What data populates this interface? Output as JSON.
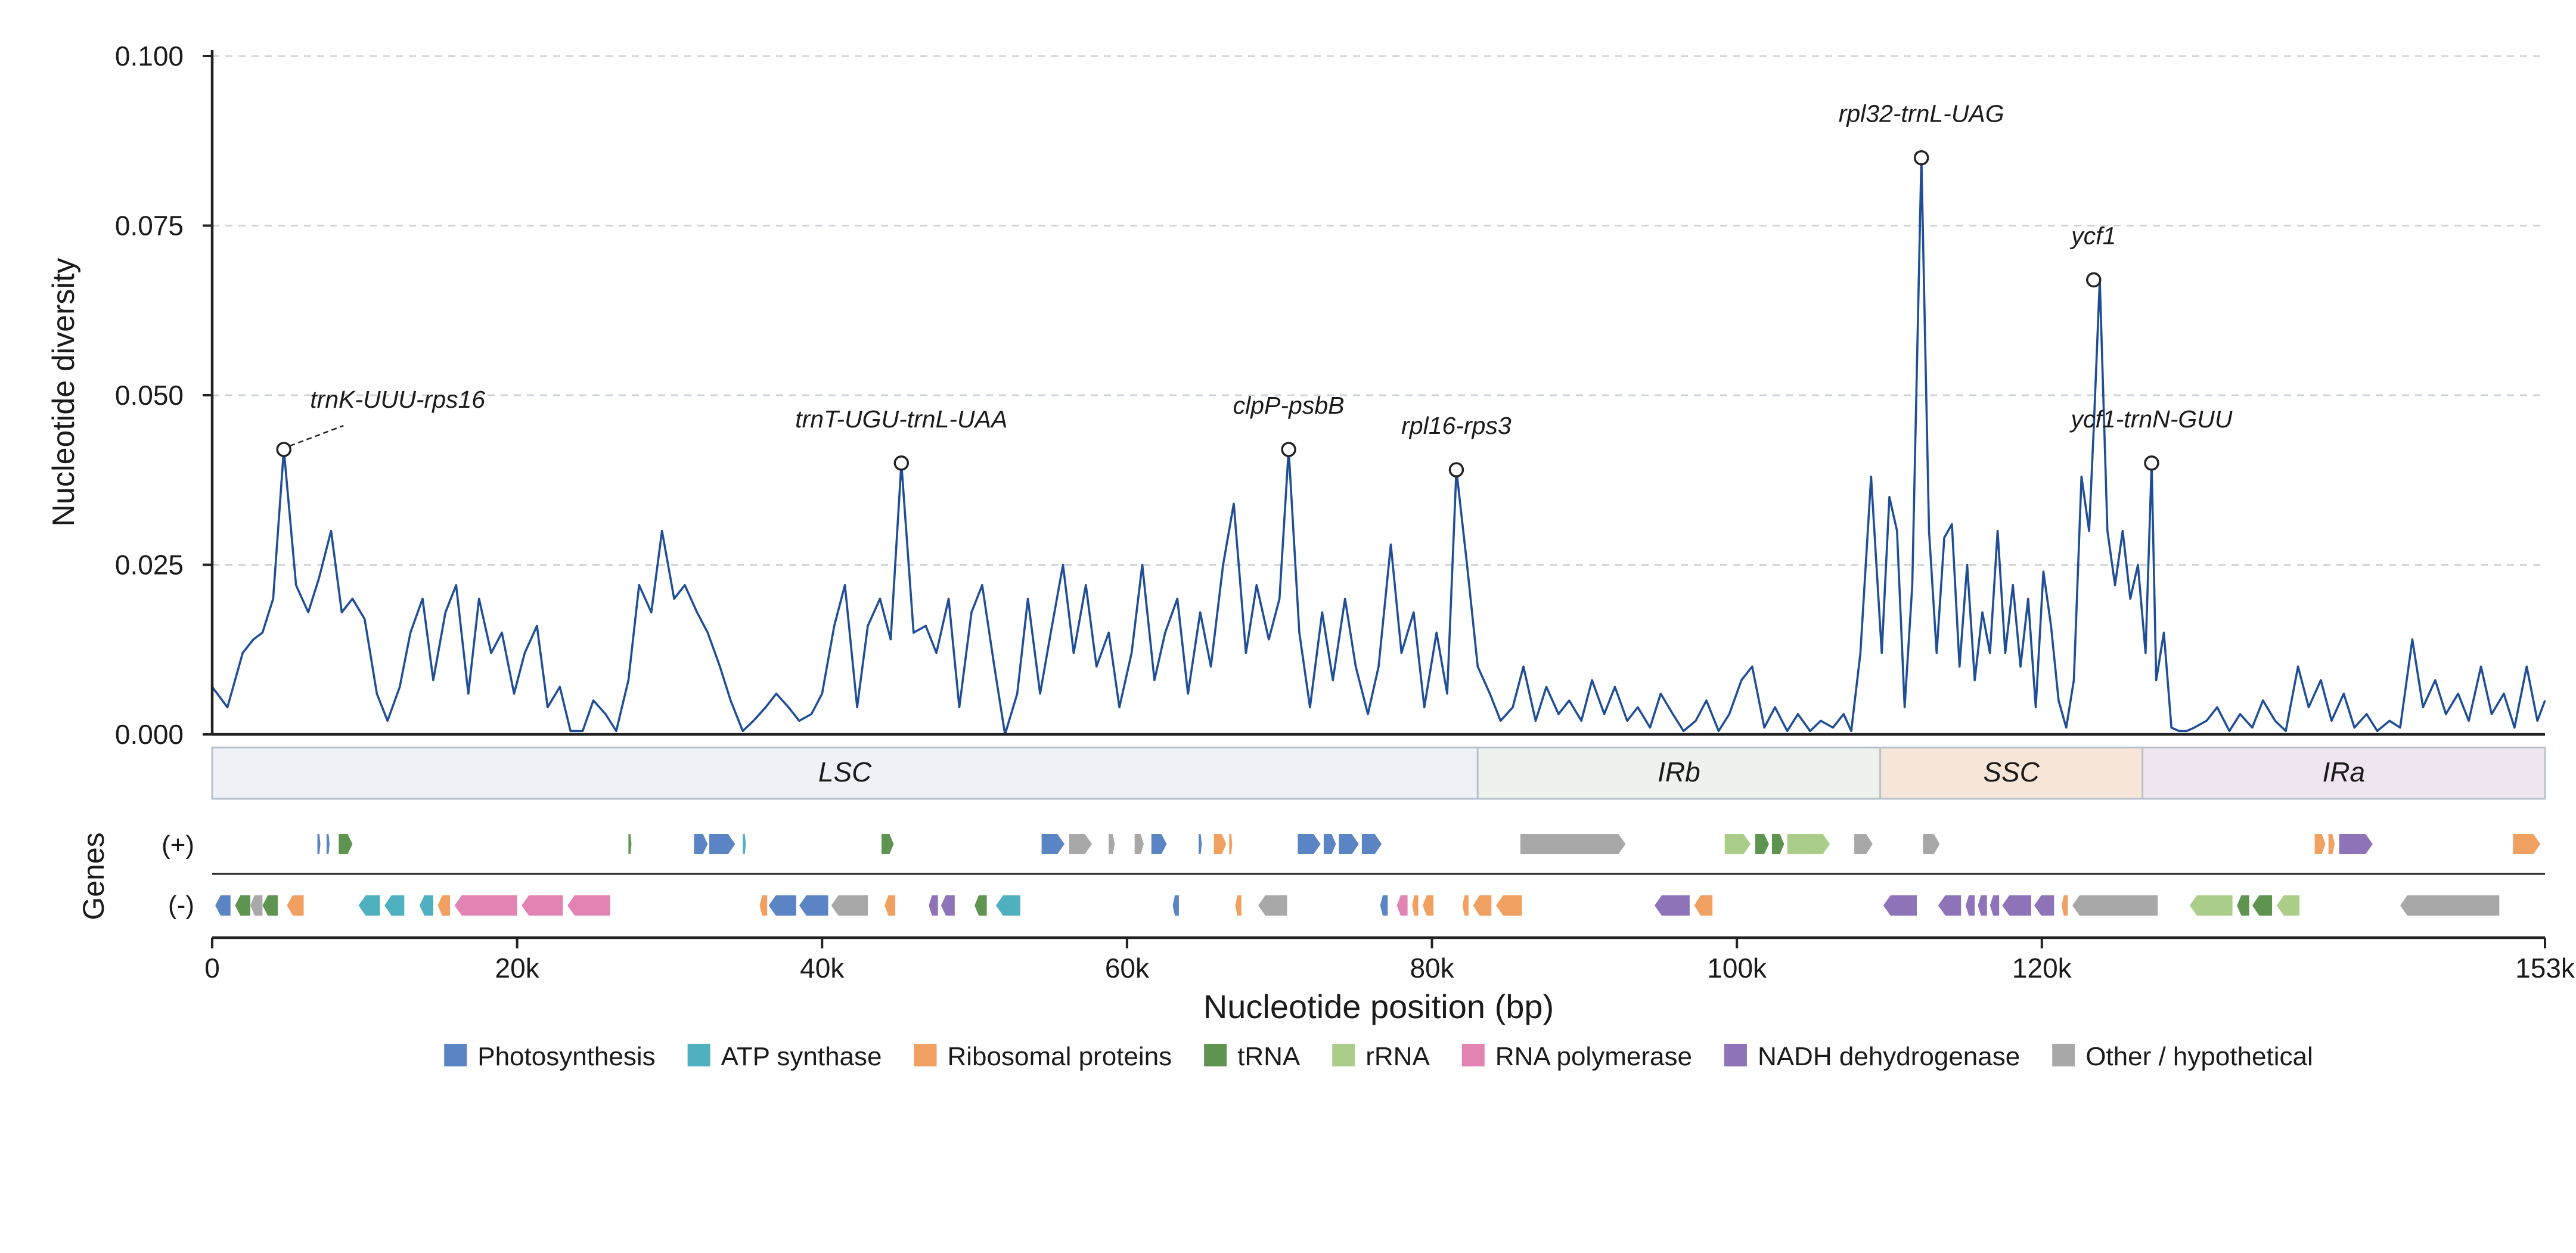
{
  "chart_data": {
    "type": "line",
    "ylabel": "Nucleotide diversity",
    "xlabel": "Nucleotide position (bp)",
    "ylim": [
      0,
      0.1
    ],
    "xlim": [
      0,
      153000
    ],
    "yticks": [
      {
        "value": 0.0,
        "label": "0.000"
      },
      {
        "value": 0.025,
        "label": "0.025"
      },
      {
        "value": 0.05,
        "label": "0.050"
      },
      {
        "value": 0.075,
        "label": "0.075"
      },
      {
        "value": 0.1,
        "label": "0.100"
      }
    ],
    "xticks": [
      {
        "value": 0,
        "label": "0"
      },
      {
        "value": 20000,
        "label": "20k"
      },
      {
        "value": 40000,
        "label": "40k"
      },
      {
        "value": 60000,
        "label": "60k"
      },
      {
        "value": 80000,
        "label": "80k"
      },
      {
        "value": 100000,
        "label": "100k"
      },
      {
        "value": 120000,
        "label": "120k"
      },
      {
        "value": 153000,
        "label": "153k"
      }
    ],
    "grid": "horizontal-dashed",
    "line_color": "#1f4e96",
    "series": [
      {
        "x": [
          0,
          1000,
          2000,
          2700,
          3300,
          4000,
          4700,
          5500,
          6300,
          7000,
          7800,
          8500,
          9200,
          10000,
          10800,
          11500,
          12300,
          13000,
          13800,
          14500,
          15300,
          16000,
          16800,
          17500,
          18300,
          19000,
          19800,
          20500,
          21300,
          22000,
          22800,
          23500,
          24300,
          25000,
          25800,
          26500,
          27300,
          28000,
          28800,
          29500,
          30300,
          31000,
          31800,
          32500,
          33300,
          34000,
          34800,
          35500,
          36300,
          37000,
          37800,
          38500,
          39300,
          40000,
          40800,
          41500,
          42300,
          43000,
          43800,
          44500,
          45200,
          46000,
          46800,
          47500,
          48300,
          49000,
          49800,
          50500,
          51300,
          52000,
          52800,
          53500,
          54300,
          55000,
          55800,
          56500,
          57300,
          58000,
          58800,
          59500,
          60300,
          61000,
          61800,
          62500,
          63300,
          64000,
          64800,
          65500,
          66300,
          67000,
          67800,
          68500,
          69300,
          70000,
          70600,
          71300,
          72000,
          72800,
          73500,
          74300,
          75000,
          75800,
          76500,
          77300,
          78000,
          78800,
          79500,
          80300,
          81000,
          81600,
          82300,
          83000,
          83800,
          84500,
          85300,
          86000,
          86800,
          87500,
          88300,
          89000,
          89800,
          90500,
          91300,
          92000,
          92800,
          93500,
          94300,
          95000,
          95800,
          96500,
          97300,
          98000,
          98800,
          99500,
          100300,
          101000,
          101800,
          102500,
          103300,
          104000,
          104800,
          105500,
          106300,
          107000,
          107500,
          108100,
          108800,
          109500,
          110000,
          110500,
          111000,
          111500,
          112100,
          112600,
          113100,
          113600,
          114100,
          114600,
          115100,
          115600,
          116100,
          116600,
          117100,
          117600,
          118100,
          118600,
          119100,
          119600,
          120100,
          120600,
          121100,
          121600,
          122100,
          122600,
          123100,
          123400,
          123800,
          124300,
          124800,
          125300,
          125800,
          126300,
          126800,
          127200,
          127500,
          128000,
          128500,
          129000,
          129500,
          130000,
          130800,
          131500,
          132300,
          133000,
          133800,
          134500,
          135300,
          136000,
          136800,
          137500,
          138300,
          139000,
          139800,
          140500,
          141300,
          142000,
          142800,
          143500,
          144300,
          145000,
          145800,
          146500,
          147300,
          148000,
          148800,
          149500,
          150300,
          151000,
          151800,
          152500,
          153000
        ],
        "y": [
          0.007,
          0.004,
          0.012,
          0.014,
          0.015,
          0.02,
          0.042,
          0.022,
          0.018,
          0.023,
          0.03,
          0.018,
          0.02,
          0.017,
          0.006,
          0.002,
          0.007,
          0.015,
          0.02,
          0.008,
          0.018,
          0.022,
          0.006,
          0.02,
          0.012,
          0.015,
          0.006,
          0.012,
          0.016,
          0.004,
          0.007,
          0.0005,
          0.0005,
          0.005,
          0.003,
          0.0005,
          0.008,
          0.022,
          0.018,
          0.03,
          0.02,
          0.022,
          0.018,
          0.015,
          0.01,
          0.005,
          0.0005,
          0.002,
          0.004,
          0.006,
          0.004,
          0.002,
          0.003,
          0.006,
          0.016,
          0.022,
          0.004,
          0.016,
          0.02,
          0.014,
          0.04,
          0.015,
          0.016,
          0.012,
          0.02,
          0.004,
          0.018,
          0.022,
          0.01,
          0.0,
          0.006,
          0.02,
          0.006,
          0.015,
          0.025,
          0.012,
          0.022,
          0.01,
          0.015,
          0.004,
          0.012,
          0.025,
          0.008,
          0.015,
          0.02,
          0.006,
          0.018,
          0.01,
          0.025,
          0.034,
          0.012,
          0.022,
          0.014,
          0.02,
          0.042,
          0.015,
          0.004,
          0.018,
          0.008,
          0.02,
          0.01,
          0.003,
          0.01,
          0.028,
          0.012,
          0.018,
          0.004,
          0.015,
          0.006,
          0.039,
          0.025,
          0.01,
          0.006,
          0.002,
          0.004,
          0.01,
          0.002,
          0.007,
          0.003,
          0.005,
          0.002,
          0.008,
          0.003,
          0.007,
          0.002,
          0.004,
          0.001,
          0.006,
          0.003,
          0.0005,
          0.002,
          0.005,
          0.0005,
          0.003,
          0.008,
          0.01,
          0.001,
          0.004,
          0.0005,
          0.003,
          0.0005,
          0.002,
          0.001,
          0.003,
          0.0005,
          0.012,
          0.038,
          0.012,
          0.035,
          0.03,
          0.004,
          0.022,
          0.085,
          0.03,
          0.012,
          0.029,
          0.031,
          0.01,
          0.025,
          0.008,
          0.018,
          0.012,
          0.03,
          0.012,
          0.022,
          0.01,
          0.02,
          0.004,
          0.024,
          0.016,
          0.005,
          0.001,
          0.008,
          0.038,
          0.03,
          0.045,
          0.067,
          0.03,
          0.022,
          0.03,
          0.02,
          0.025,
          0.012,
          0.04,
          0.008,
          0.015,
          0.001,
          0.0005,
          0.0005,
          0.001,
          0.002,
          0.004,
          0.0005,
          0.003,
          0.001,
          0.005,
          0.002,
          0.0005,
          0.01,
          0.004,
          0.008,
          0.002,
          0.006,
          0.001,
          0.003,
          0.0005,
          0.002,
          0.001,
          0.014,
          0.004,
          0.008,
          0.003,
          0.006,
          0.002,
          0.01,
          0.003,
          0.006,
          0.001,
          0.01,
          0.002,
          0.005
        ]
      }
    ],
    "peaks": [
      {
        "label": "trnK-UUU-rps16",
        "x": 4700,
        "y": 0.042
      },
      {
        "label": "trnT-UGU-trnL-UAA",
        "x": 45200,
        "y": 0.04
      },
      {
        "label": "clpP-psbB",
        "x": 70600,
        "y": 0.042
      },
      {
        "label": "rpl16-rps3",
        "x": 81600,
        "y": 0.039
      },
      {
        "label": "rpl32-trnL-UAG",
        "x": 112100,
        "y": 0.085
      },
      {
        "label": "ycf1",
        "x": 123400,
        "y": 0.067
      },
      {
        "label": "ycf1-trnN-GUU",
        "x": 127200,
        "y": 0.04
      }
    ],
    "regions": [
      {
        "label": "LSC",
        "start": 0,
        "end": 83000,
        "color": "#eef2f6"
      },
      {
        "label": "IRb",
        "start": 83000,
        "end": 109400,
        "color": "#edf3ec"
      },
      {
        "label": "SSC",
        "start": 109400,
        "end": 126600,
        "color": "#f7e6d8"
      },
      {
        "label": "IRa",
        "start": 126600,
        "end": 153000,
        "color": "#efe5f1"
      }
    ],
    "genes_label": "Genes",
    "strand_labels": {
      "plus": "(+)",
      "minus": "(-)"
    },
    "gene_categories": [
      {
        "key": "photo",
        "name": "Photosynthesis",
        "color": "#5b84c4"
      },
      {
        "key": "atp",
        "name": "ATP synthase",
        "color": "#4fb1c0"
      },
      {
        "key": "ribo",
        "name": "Ribosomal proteins",
        "color": "#f0a060"
      },
      {
        "key": "trna",
        "name": "tRNA",
        "color": "#5f9350"
      },
      {
        "key": "rrna",
        "name": "rRNA",
        "color": "#aacd8a"
      },
      {
        "key": "rnapol",
        "name": "RNA polymerase",
        "color": "#e283b3"
      },
      {
        "key": "ndh",
        "name": "NADH dehydrogenase",
        "color": "#8f73b8"
      },
      {
        "key": "other",
        "name": "Other / hypothetical",
        "color": "#a8a8a8"
      }
    ],
    "genes_plus": [
      {
        "s": 6900,
        "e": 7100,
        "c": "photo"
      },
      {
        "s": 7500,
        "e": 7700,
        "c": "photo"
      },
      {
        "s": 8300,
        "e": 9200,
        "c": "trna"
      },
      {
        "s": 27300,
        "e": 27500,
        "c": "trna"
      },
      {
        "s": 31600,
        "e": 32500,
        "c": "photo"
      },
      {
        "s": 32600,
        "e": 34300,
        "c": "photo"
      },
      {
        "s": 34800,
        "e": 35000,
        "c": "atp"
      },
      {
        "s": 43900,
        "e": 44700,
        "c": "trna"
      },
      {
        "s": 54400,
        "e": 55900,
        "c": "photo"
      },
      {
        "s": 56200,
        "e": 57700,
        "c": "other"
      },
      {
        "s": 58800,
        "e": 59200,
        "c": "other"
      },
      {
        "s": 60500,
        "e": 61100,
        "c": "other"
      },
      {
        "s": 61600,
        "e": 62600,
        "c": "photo"
      },
      {
        "s": 64700,
        "e": 64900,
        "c": "photo"
      },
      {
        "s": 65700,
        "e": 66500,
        "c": "ribo"
      },
      {
        "s": 66700,
        "e": 66900,
        "c": "ribo"
      },
      {
        "s": 71200,
        "e": 72700,
        "c": "photo"
      },
      {
        "s": 72900,
        "e": 73700,
        "c": "photo"
      },
      {
        "s": 73900,
        "e": 75200,
        "c": "photo"
      },
      {
        "s": 75400,
        "e": 76700,
        "c": "photo"
      },
      {
        "s": 85800,
        "e": 92700,
        "c": "other"
      },
      {
        "s": 99200,
        "e": 100900,
        "c": "rrna"
      },
      {
        "s": 101200,
        "e": 102100,
        "c": "trna"
      },
      {
        "s": 102300,
        "e": 103100,
        "c": "trna"
      },
      {
        "s": 103300,
        "e": 106100,
        "c": "rrna"
      },
      {
        "s": 107700,
        "e": 108900,
        "c": "other"
      },
      {
        "s": 112200,
        "e": 113300,
        "c": "other"
      },
      {
        "s": 137900,
        "e": 138600,
        "c": "ribo"
      },
      {
        "s": 138800,
        "e": 139200,
        "c": "ribo"
      },
      {
        "s": 139500,
        "e": 141700,
        "c": "ndh"
      },
      {
        "s": 150900,
        "e": 152700,
        "c": "ribo"
      }
    ],
    "genes_minus": [
      {
        "s": 200,
        "e": 1200,
        "c": "photo"
      },
      {
        "s": 1500,
        "e": 2500,
        "c": "trna"
      },
      {
        "s": 2500,
        "e": 3300,
        "c": "other"
      },
      {
        "s": 3300,
        "e": 4300,
        "c": "trna"
      },
      {
        "s": 4900,
        "e": 6000,
        "c": "ribo"
      },
      {
        "s": 9600,
        "e": 11000,
        "c": "atp"
      },
      {
        "s": 11300,
        "e": 12600,
        "c": "atp"
      },
      {
        "s": 13600,
        "e": 14500,
        "c": "atp"
      },
      {
        "s": 14800,
        "e": 15600,
        "c": "ribo"
      },
      {
        "s": 15900,
        "e": 20000,
        "c": "rnapol"
      },
      {
        "s": 20300,
        "e": 23000,
        "c": "rnapol"
      },
      {
        "s": 23300,
        "e": 26100,
        "c": "rnapol"
      },
      {
        "s": 35900,
        "e": 36400,
        "c": "ribo"
      },
      {
        "s": 36500,
        "e": 38300,
        "c": "photo"
      },
      {
        "s": 38500,
        "e": 40400,
        "c": "photo"
      },
      {
        "s": 40600,
        "e": 43000,
        "c": "other"
      },
      {
        "s": 44100,
        "e": 44800,
        "c": "ribo"
      },
      {
        "s": 47000,
        "e": 47600,
        "c": "ndh"
      },
      {
        "s": 47800,
        "e": 48700,
        "c": "ndh"
      },
      {
        "s": 50000,
        "e": 50800,
        "c": "trna"
      },
      {
        "s": 51400,
        "e": 53000,
        "c": "atp"
      },
      {
        "s": 63000,
        "e": 63400,
        "c": "photo"
      },
      {
        "s": 67100,
        "e": 67500,
        "c": "ribo"
      },
      {
        "s": 68600,
        "e": 70500,
        "c": "other"
      },
      {
        "s": 76600,
        "e": 77100,
        "c": "photo"
      },
      {
        "s": 77700,
        "e": 78400,
        "c": "rnapol"
      },
      {
        "s": 78700,
        "e": 79100,
        "c": "ribo"
      },
      {
        "s": 79400,
        "e": 80100,
        "c": "ribo"
      },
      {
        "s": 82000,
        "e": 82400,
        "c": "ribo"
      },
      {
        "s": 82700,
        "e": 83900,
        "c": "ribo"
      },
      {
        "s": 84200,
        "e": 85900,
        "c": "ribo"
      },
      {
        "s": 94600,
        "e": 96900,
        "c": "ndh"
      },
      {
        "s": 97200,
        "e": 98400,
        "c": "ribo"
      },
      {
        "s": 109600,
        "e": 111800,
        "c": "ndh"
      },
      {
        "s": 113200,
        "e": 114700,
        "c": "ndh"
      },
      {
        "s": 115000,
        "e": 115600,
        "c": "ndh"
      },
      {
        "s": 115800,
        "e": 116400,
        "c": "ndh"
      },
      {
        "s": 116600,
        "e": 117200,
        "c": "ndh"
      },
      {
        "s": 117400,
        "e": 119300,
        "c": "ndh"
      },
      {
        "s": 119500,
        "e": 120800,
        "c": "ndh"
      },
      {
        "s": 121300,
        "e": 121700,
        "c": "ribo"
      },
      {
        "s": 122000,
        "e": 127600,
        "c": "other"
      },
      {
        "s": 129700,
        "e": 132500,
        "c": "rrna"
      },
      {
        "s": 132800,
        "e": 133600,
        "c": "trna"
      },
      {
        "s": 133800,
        "e": 135100,
        "c": "trna"
      },
      {
        "s": 135400,
        "e": 136900,
        "c": "rrna"
      },
      {
        "s": 143500,
        "e": 150000,
        "c": "other"
      }
    ]
  }
}
